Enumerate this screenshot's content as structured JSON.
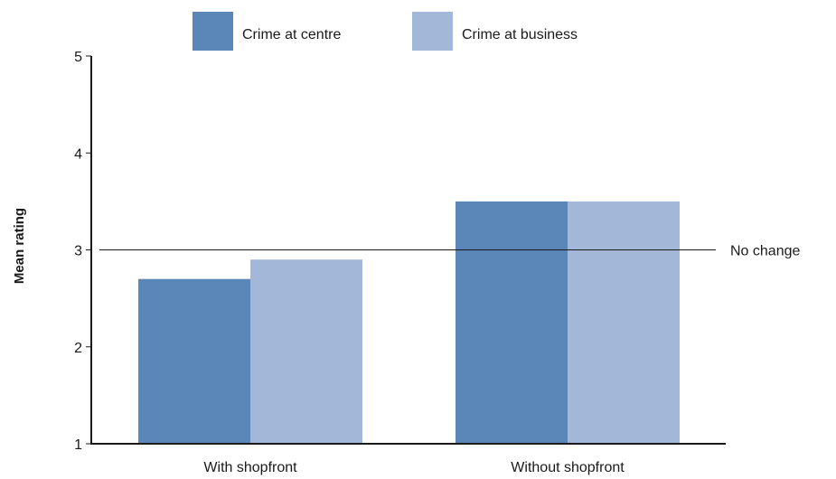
{
  "chart_data": {
    "type": "bar",
    "categories": [
      "With shopfront",
      "Without shopfront"
    ],
    "series": [
      {
        "name": "Crime at centre",
        "values": [
          2.7,
          3.5
        ],
        "color": "#5b86b8"
      },
      {
        "name": "Crime at business",
        "values": [
          2.9,
          3.5
        ],
        "color": "#a3b7d8"
      }
    ],
    "ylabel": "Mean rating",
    "xlabel": "",
    "ylim": [
      1,
      5
    ],
    "yticks": [
      1,
      2,
      3,
      4,
      5
    ],
    "reference_line": {
      "value": 3,
      "label": "No change"
    },
    "grid": false,
    "legend_position": "top-center"
  }
}
